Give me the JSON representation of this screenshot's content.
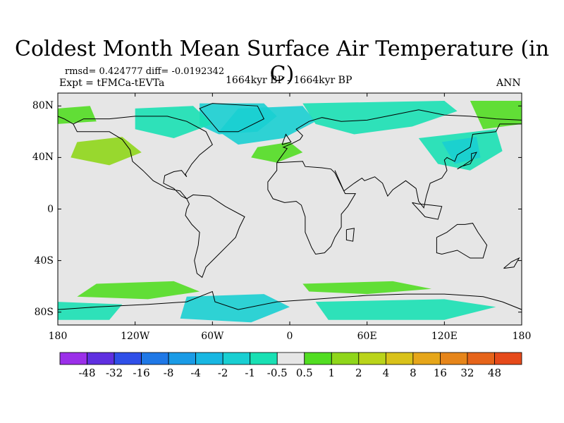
{
  "title": "Coldest Month Mean Surface Air Temperature (in C)",
  "stats": "rmsd= 0.424777 diff= -0.0192342",
  "experiment": "Expt = tFMCa-tEVTa",
  "period": "1664kyr BP - 1664kyr BP",
  "season": "ANN",
  "colors": {
    "neutral": "#e6e6e6",
    "coast": "#000000",
    "colorbar": [
      "#9b2fe9",
      "#5f2fe0",
      "#2f4fe8",
      "#1f78e6",
      "#1a9be6",
      "#18b7e2",
      "#19cfd2",
      "#19e0b4",
      "#e6e6e6",
      "#52dd22",
      "#8fd61a",
      "#bad41a",
      "#d9c21a",
      "#e6a61a",
      "#e6851a",
      "#e6641a",
      "#e64a1a"
    ]
  },
  "chart_data": {
    "type": "map",
    "projection": "cylindrical-equidistant",
    "lon_range": [
      -180,
      180
    ],
    "lat_range": [
      -90,
      90
    ],
    "lat_ticks": [
      "80N",
      "40N",
      "0",
      "40S",
      "80S"
    ],
    "lon_ticks": [
      "180",
      "120W",
      "60W",
      "0",
      "60E",
      "120E",
      "180"
    ],
    "colorbar_levels": [
      "-48",
      "-32",
      "-16",
      "-8",
      "-4",
      "-2",
      "-1",
      "-0.5",
      "0.5",
      "1",
      "2",
      "4",
      "8",
      "16",
      "32",
      "48"
    ],
    "anomaly_regions": [
      {
        "name": "greenland-north-atlantic",
        "class": "-1 to -0.5",
        "lon": -45,
        "lat": 68
      },
      {
        "name": "eurasia-arctic",
        "class": "-1 to -0.5",
        "lon": 80,
        "lat": 75
      },
      {
        "name": "northeast-asia",
        "class": "-1 to -0.5",
        "lon": 130,
        "lat": 50
      },
      {
        "name": "north-pacific",
        "class": "1 to 2",
        "lon": -160,
        "lat": 45
      },
      {
        "name": "east-siberia",
        "class": "0.5 to 1",
        "lon": 155,
        "lat": 70
      },
      {
        "name": "southern-ocean-pacific",
        "class": "0.5 to 1",
        "lon": -140,
        "lat": -65
      },
      {
        "name": "antarctica-west",
        "class": "-1 to -0.5",
        "lon": -60,
        "lat": -80
      },
      {
        "name": "antarctica-east",
        "class": "-1 to -0.5",
        "lon": 60,
        "lat": -78
      }
    ]
  }
}
